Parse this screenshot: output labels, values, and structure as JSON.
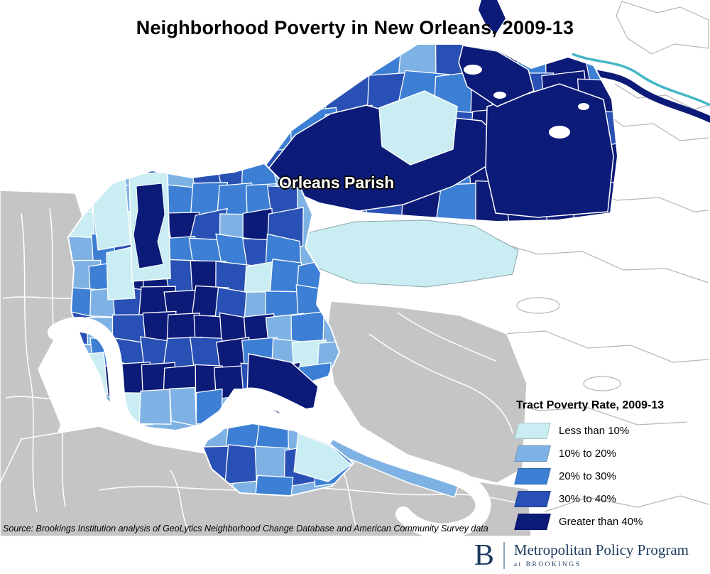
{
  "title": "Neighborhood Poverty in New Orleans, 2009-13",
  "map": {
    "parish_label": "Orleans Parish"
  },
  "legend": {
    "title": "Tract Poverty Rate, 2009-13",
    "items": [
      {
        "label": "Less than 10%",
        "color": "#c9edf2"
      },
      {
        "label": "10% to 20%",
        "color": "#7fb2e4"
      },
      {
        "label": "20% to 30%",
        "color": "#3c7fd4"
      },
      {
        "label": "30% to 40%",
        "color": "#2950b4"
      },
      {
        "label": "Greater than 40%",
        "color": "#0c1a78"
      }
    ]
  },
  "source": "Source: Brookings Institution analysis of GeoLytics Neighborhood Change Database and American Community Survey data",
  "footer": {
    "logo_letter": "B",
    "program": "Metropolitan Policy Program",
    "sub": "at BROOKINGS"
  },
  "colors": {
    "land_gray": "#c5c5c5",
    "outline_gray": "#b5b5b5",
    "water_teal": "#45b6c6",
    "brand_navy": "#1b3a5e",
    "background": "#ffffff"
  }
}
